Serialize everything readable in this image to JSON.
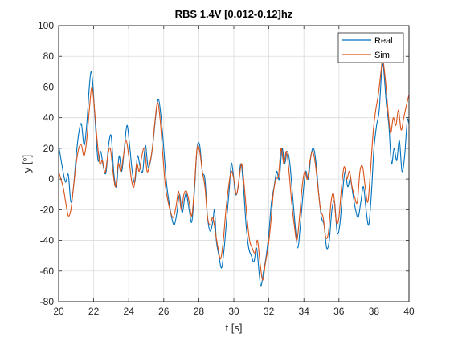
{
  "chart_data": {
    "type": "line",
    "title": "RBS 1.4V  [0.012-0.12]hz",
    "xlabel": "t [s]",
    "ylabel": "y [°]",
    "xlim": [
      20,
      40
    ],
    "ylim": [
      -80,
      100
    ],
    "xticks": [
      20,
      22,
      24,
      26,
      28,
      30,
      32,
      34,
      36,
      38,
      40
    ],
    "yticks": [
      -80,
      -60,
      -40,
      -20,
      0,
      20,
      40,
      60,
      80,
      100
    ],
    "grid": true,
    "legend_position": "top-right",
    "series": [
      {
        "name": "Real",
        "color": "#0072BD",
        "points": [
          [
            20.0,
            22
          ],
          [
            20.25,
            5
          ],
          [
            20.4,
            -2
          ],
          [
            20.55,
            3
          ],
          [
            20.7,
            -15
          ],
          [
            20.85,
            -5
          ],
          [
            21.0,
            15
          ],
          [
            21.15,
            30
          ],
          [
            21.3,
            36
          ],
          [
            21.45,
            22
          ],
          [
            21.6,
            35
          ],
          [
            21.75,
            60
          ],
          [
            21.85,
            70
          ],
          [
            21.95,
            62
          ],
          [
            22.1,
            35
          ],
          [
            22.25,
            12
          ],
          [
            22.4,
            18
          ],
          [
            22.55,
            8
          ],
          [
            22.7,
            4
          ],
          [
            22.85,
            22
          ],
          [
            23.0,
            28
          ],
          [
            23.15,
            4
          ],
          [
            23.3,
            -5
          ],
          [
            23.45,
            15
          ],
          [
            23.6,
            5
          ],
          [
            23.75,
            20
          ],
          [
            23.9,
            35
          ],
          [
            24.05,
            22
          ],
          [
            24.2,
            5
          ],
          [
            24.35,
            -2
          ],
          [
            24.5,
            15
          ],
          [
            24.65,
            8
          ],
          [
            24.8,
            5
          ],
          [
            24.95,
            22
          ],
          [
            25.1,
            8
          ],
          [
            25.25,
            12
          ],
          [
            25.4,
            25
          ],
          [
            25.55,
            42
          ],
          [
            25.7,
            52
          ],
          [
            25.85,
            40
          ],
          [
            26.0,
            20
          ],
          [
            26.15,
            -2
          ],
          [
            26.3,
            -15
          ],
          [
            26.45,
            -25
          ],
          [
            26.6,
            -30
          ],
          [
            26.75,
            -22
          ],
          [
            26.9,
            -10
          ],
          [
            27.05,
            -22
          ],
          [
            27.2,
            -12
          ],
          [
            27.3,
            -10
          ],
          [
            27.45,
            -20
          ],
          [
            27.6,
            -28
          ],
          [
            27.75,
            -8
          ],
          [
            27.9,
            20
          ],
          [
            28.05,
            22
          ],
          [
            28.2,
            5
          ],
          [
            28.35,
            0
          ],
          [
            28.5,
            -25
          ],
          [
            28.65,
            -34
          ],
          [
            28.8,
            -28
          ],
          [
            28.9,
            -20
          ],
          [
            29.0,
            -40
          ],
          [
            29.15,
            -50
          ],
          [
            29.3,
            -58
          ],
          [
            29.45,
            -45
          ],
          [
            29.6,
            -25
          ],
          [
            29.75,
            -5
          ],
          [
            29.85,
            10
          ],
          [
            29.95,
            5
          ],
          [
            30.1,
            -10
          ],
          [
            30.25,
            -5
          ],
          [
            30.4,
            10
          ],
          [
            30.55,
            -5
          ],
          [
            30.7,
            -30
          ],
          [
            30.85,
            -45
          ],
          [
            31.0,
            -50
          ],
          [
            31.15,
            -54
          ],
          [
            31.3,
            -45
          ],
          [
            31.45,
            -62
          ],
          [
            31.55,
            -70
          ],
          [
            31.7,
            -60
          ],
          [
            31.85,
            -50
          ],
          [
            32.0,
            -35
          ],
          [
            32.15,
            -15
          ],
          [
            32.3,
            -5
          ],
          [
            32.45,
            5
          ],
          [
            32.6,
            0
          ],
          [
            32.75,
            20
          ],
          [
            32.9,
            10
          ],
          [
            33.05,
            18
          ],
          [
            33.2,
            10
          ],
          [
            33.35,
            -10
          ],
          [
            33.5,
            -30
          ],
          [
            33.65,
            -45
          ],
          [
            33.8,
            -30
          ],
          [
            33.95,
            -10
          ],
          [
            34.1,
            5
          ],
          [
            34.25,
            0
          ],
          [
            34.4,
            15
          ],
          [
            34.55,
            20
          ],
          [
            34.7,
            10
          ],
          [
            34.85,
            -10
          ],
          [
            35.0,
            -25
          ],
          [
            35.15,
            -30
          ],
          [
            35.3,
            -45
          ],
          [
            35.45,
            -40
          ],
          [
            35.6,
            -20
          ],
          [
            35.75,
            -15
          ],
          [
            35.9,
            -35
          ],
          [
            36.05,
            -30
          ],
          [
            36.2,
            -10
          ],
          [
            36.35,
            5
          ],
          [
            36.5,
            -5
          ],
          [
            36.65,
            0
          ],
          [
            36.8,
            -10
          ],
          [
            36.95,
            -20
          ],
          [
            37.1,
            -25
          ],
          [
            37.25,
            -15
          ],
          [
            37.4,
            -5
          ],
          [
            37.55,
            -20
          ],
          [
            37.7,
            -30
          ],
          [
            37.85,
            -10
          ],
          [
            38.0,
            20
          ],
          [
            38.15,
            35
          ],
          [
            38.3,
            45
          ],
          [
            38.45,
            72
          ],
          [
            38.55,
            72
          ],
          [
            38.7,
            50
          ],
          [
            38.85,
            35
          ],
          [
            39.0,
            10
          ],
          [
            39.15,
            20
          ],
          [
            39.3,
            12
          ],
          [
            39.45,
            25
          ],
          [
            39.6,
            5
          ],
          [
            39.75,
            15
          ],
          [
            39.9,
            38
          ],
          [
            40.0,
            36
          ]
        ]
      },
      {
        "name": "Sim",
        "color": "#D95319",
        "points": [
          [
            20.0,
            5
          ],
          [
            20.25,
            -5
          ],
          [
            20.4,
            -15
          ],
          [
            20.55,
            -24
          ],
          [
            20.7,
            -20
          ],
          [
            20.85,
            -5
          ],
          [
            21.0,
            10
          ],
          [
            21.15,
            20
          ],
          [
            21.3,
            22
          ],
          [
            21.45,
            15
          ],
          [
            21.6,
            25
          ],
          [
            21.75,
            45
          ],
          [
            21.9,
            60
          ],
          [
            22.05,
            45
          ],
          [
            22.2,
            25
          ],
          [
            22.35,
            10
          ],
          [
            22.5,
            12
          ],
          [
            22.65,
            4
          ],
          [
            22.8,
            15
          ],
          [
            22.95,
            20
          ],
          [
            23.1,
            5
          ],
          [
            23.25,
            -5
          ],
          [
            23.4,
            10
          ],
          [
            23.55,
            5
          ],
          [
            23.7,
            15
          ],
          [
            23.85,
            25
          ],
          [
            24.0,
            15
          ],
          [
            24.15,
            0
          ],
          [
            24.3,
            -5
          ],
          [
            24.45,
            10
          ],
          [
            24.6,
            5
          ],
          [
            24.75,
            15
          ],
          [
            24.9,
            20
          ],
          [
            25.05,
            5
          ],
          [
            25.2,
            10
          ],
          [
            25.35,
            20
          ],
          [
            25.5,
            38
          ],
          [
            25.65,
            50
          ],
          [
            25.8,
            38
          ],
          [
            25.95,
            15
          ],
          [
            26.1,
            -5
          ],
          [
            26.25,
            -15
          ],
          [
            26.4,
            -22
          ],
          [
            26.55,
            -25
          ],
          [
            26.7,
            -18
          ],
          [
            26.85,
            -8
          ],
          [
            27.0,
            -20
          ],
          [
            27.15,
            -10
          ],
          [
            27.3,
            -8
          ],
          [
            27.45,
            -15
          ],
          [
            27.6,
            -24
          ],
          [
            27.75,
            -5
          ],
          [
            27.9,
            20
          ],
          [
            28.05,
            18
          ],
          [
            28.2,
            5
          ],
          [
            28.35,
            -5
          ],
          [
            28.5,
            -25
          ],
          [
            28.65,
            -30
          ],
          [
            28.8,
            -25
          ],
          [
            28.95,
            -35
          ],
          [
            29.1,
            -45
          ],
          [
            29.25,
            -52
          ],
          [
            29.4,
            -40
          ],
          [
            29.55,
            -20
          ],
          [
            29.7,
            -5
          ],
          [
            29.85,
            5
          ],
          [
            30.0,
            0
          ],
          [
            30.15,
            -10
          ],
          [
            30.3,
            0
          ],
          [
            30.45,
            10
          ],
          [
            30.6,
            -5
          ],
          [
            30.75,
            -25
          ],
          [
            30.9,
            -40
          ],
          [
            31.05,
            -45
          ],
          [
            31.2,
            -48
          ],
          [
            31.35,
            -40
          ],
          [
            31.5,
            -55
          ],
          [
            31.65,
            -66
          ],
          [
            31.8,
            -55
          ],
          [
            31.95,
            -45
          ],
          [
            32.1,
            -30
          ],
          [
            32.25,
            -10
          ],
          [
            32.4,
            0
          ],
          [
            32.55,
            2
          ],
          [
            32.7,
            20
          ],
          [
            32.85,
            10
          ],
          [
            33.0,
            18
          ],
          [
            33.15,
            5
          ],
          [
            33.3,
            -15
          ],
          [
            33.45,
            -30
          ],
          [
            33.6,
            -40
          ],
          [
            33.75,
            -25
          ],
          [
            33.9,
            -5
          ],
          [
            34.05,
            5
          ],
          [
            34.2,
            0
          ],
          [
            34.35,
            12
          ],
          [
            34.5,
            18
          ],
          [
            34.65,
            10
          ],
          [
            34.8,
            -5
          ],
          [
            34.95,
            -20
          ],
          [
            35.1,
            -25
          ],
          [
            35.25,
            -38
          ],
          [
            35.4,
            -35
          ],
          [
            35.55,
            -15
          ],
          [
            35.7,
            -10
          ],
          [
            35.85,
            -28
          ],
          [
            36.0,
            -25
          ],
          [
            36.15,
            -5
          ],
          [
            36.3,
            8
          ],
          [
            36.45,
            0
          ],
          [
            36.6,
            5
          ],
          [
            36.75,
            -5
          ],
          [
            36.9,
            -12
          ],
          [
            37.05,
            -15
          ],
          [
            37.2,
            5
          ],
          [
            37.35,
            8
          ],
          [
            37.5,
            -5
          ],
          [
            37.65,
            -15
          ],
          [
            37.8,
            5
          ],
          [
            37.95,
            30
          ],
          [
            38.1,
            45
          ],
          [
            38.25,
            55
          ],
          [
            38.4,
            70
          ],
          [
            38.5,
            78
          ],
          [
            38.65,
            65
          ],
          [
            38.8,
            45
          ],
          [
            38.95,
            30
          ],
          [
            39.1,
            40
          ],
          [
            39.25,
            35
          ],
          [
            39.4,
            45
          ],
          [
            39.55,
            32
          ],
          [
            39.7,
            40
          ],
          [
            39.85,
            48
          ],
          [
            40.0,
            55
          ]
        ]
      }
    ]
  }
}
